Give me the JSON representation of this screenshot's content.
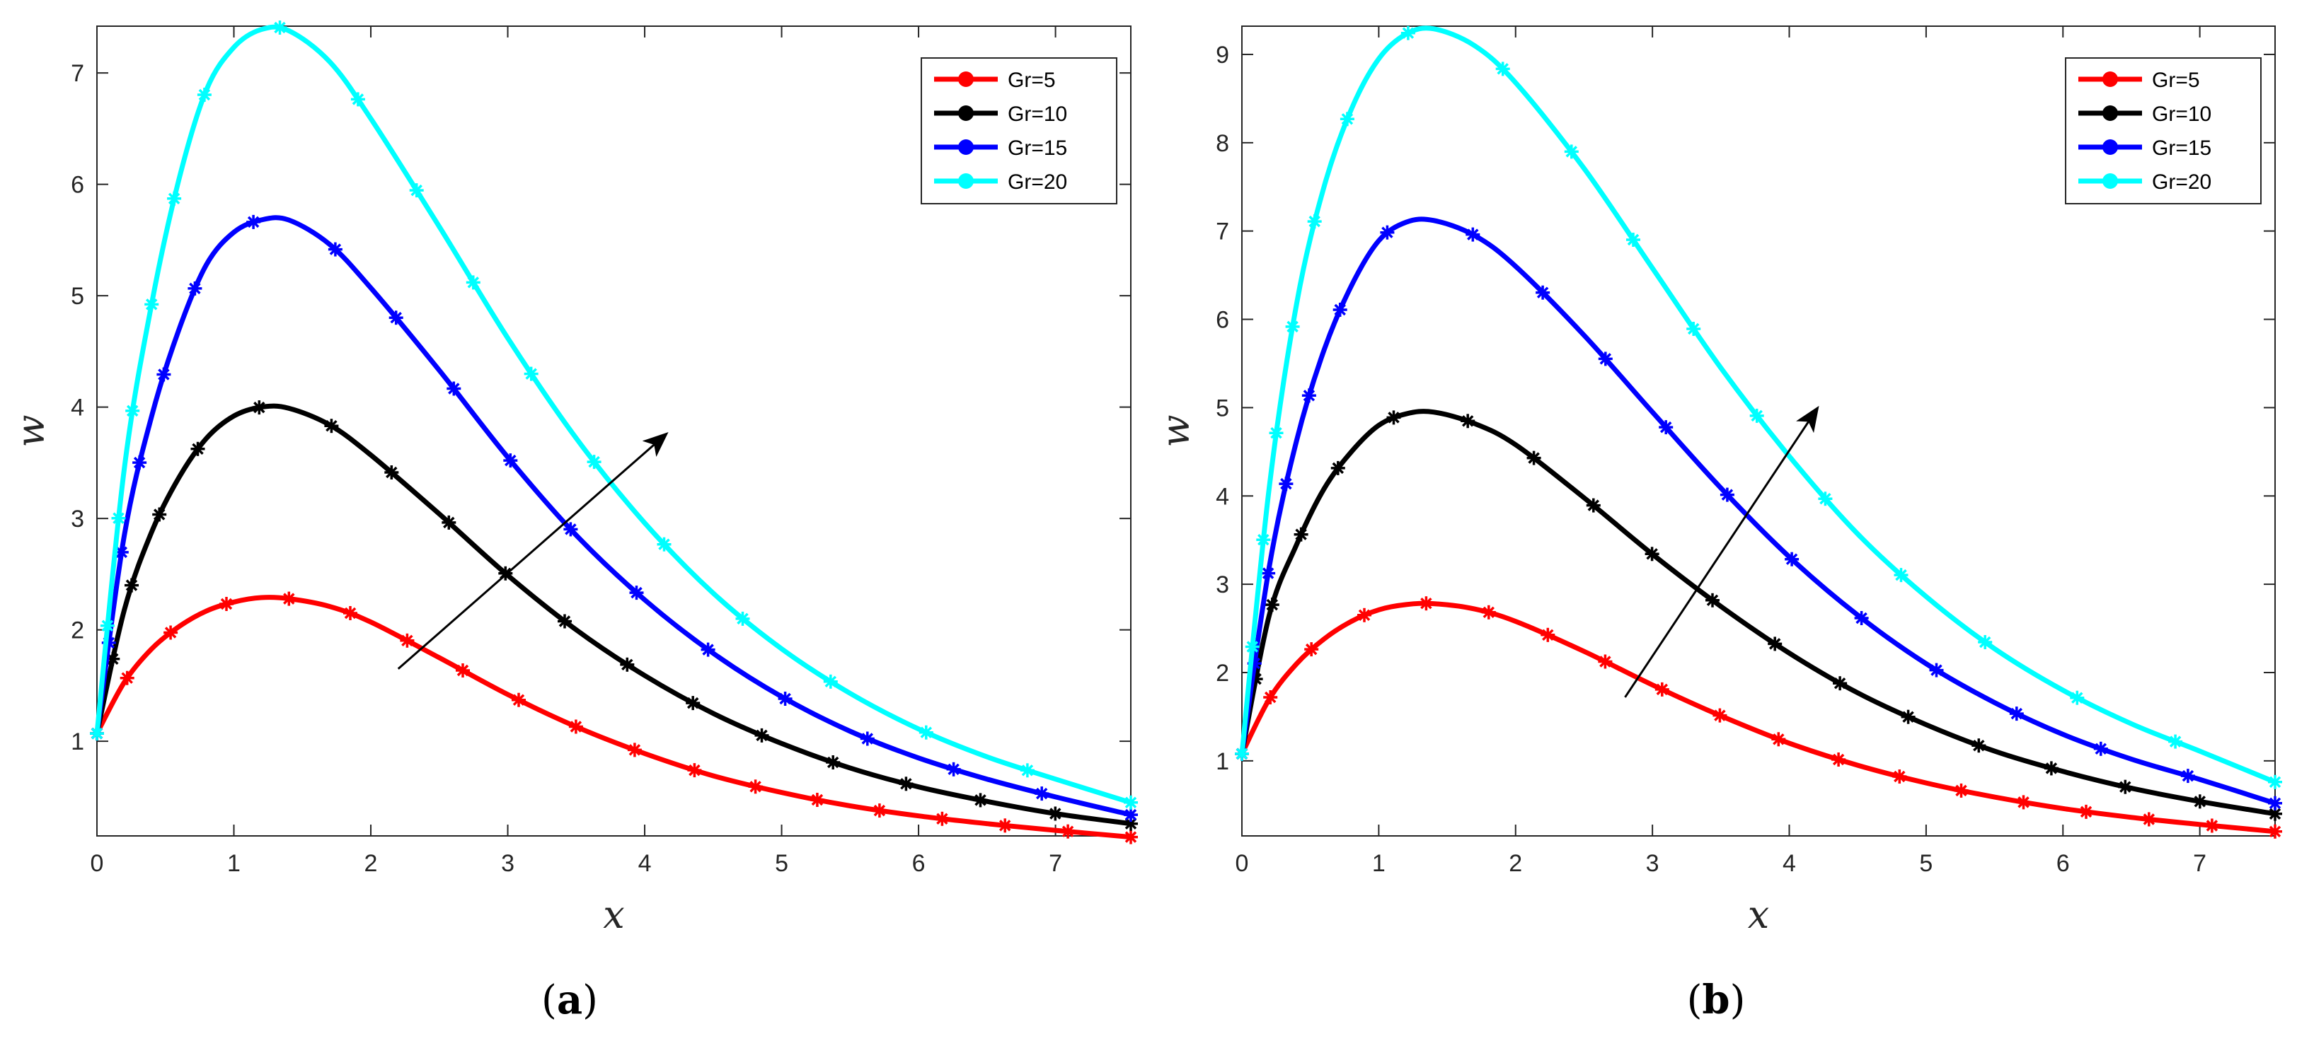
{
  "chart_data": [
    {
      "type": "line",
      "panel_label": "a",
      "xlabel": "x",
      "ylabel": "w",
      "xlim": [
        0,
        7.55
      ],
      "ylim": [
        0.15,
        7.42
      ],
      "xticks": [
        0,
        1,
        2,
        3,
        4,
        5,
        6,
        7
      ],
      "yticks": [
        1,
        2,
        3,
        4,
        5,
        6,
        7
      ],
      "legend_position": "top-right",
      "arrow": {
        "from": [
          2.2,
          1.65
        ],
        "to": [
          4.15,
          3.75
        ]
      },
      "series": [
        {
          "name": "Gr=5",
          "color": "#ff0000",
          "x": [
            0,
            0.2,
            0.4,
            0.6,
            0.8,
            1.0,
            1.2,
            1.4,
            1.7,
            2.0,
            2.5,
            3.0,
            3.5,
            4.0,
            4.5,
            5.0,
            5.5,
            6.0,
            6.5,
            7.0,
            7.55
          ],
          "y": [
            1.07,
            1.53,
            1.83,
            2.03,
            2.17,
            2.25,
            2.29,
            2.28,
            2.21,
            2.07,
            1.75,
            1.42,
            1.13,
            0.89,
            0.69,
            0.54,
            0.42,
            0.33,
            0.26,
            0.2,
            0.14
          ]
        },
        {
          "name": "Gr=10",
          "color": "#000000",
          "x": [
            0,
            0.2,
            0.4,
            0.6,
            0.8,
            1.0,
            1.2,
            1.4,
            1.7,
            2.0,
            2.5,
            3.0,
            3.5,
            4.0,
            4.5,
            5.0,
            5.5,
            6.0,
            6.5,
            7.0,
            7.55
          ],
          "y": [
            1.07,
            2.18,
            2.88,
            3.37,
            3.72,
            3.92,
            4.0,
            3.99,
            3.84,
            3.57,
            3.04,
            2.49,
            2.0,
            1.59,
            1.25,
            0.98,
            0.76,
            0.59,
            0.46,
            0.35,
            0.26
          ]
        },
        {
          "name": "Gr=15",
          "color": "#0000ff",
          "x": [
            0,
            0.2,
            0.4,
            0.6,
            0.8,
            1.0,
            1.2,
            1.4,
            1.7,
            2.0,
            2.5,
            3.0,
            3.5,
            4.0,
            4.5,
            5.0,
            5.5,
            6.0,
            6.5,
            7.0,
            7.55
          ],
          "y": [
            1.07,
            2.85,
            3.92,
            4.7,
            5.28,
            5.57,
            5.68,
            5.68,
            5.46,
            5.07,
            4.33,
            3.55,
            2.85,
            2.27,
            1.79,
            1.4,
            1.09,
            0.85,
            0.66,
            0.5,
            0.34
          ]
        },
        {
          "name": "Gr=20",
          "color": "#00ffff",
          "x": [
            0,
            0.2,
            0.4,
            0.6,
            0.8,
            1.0,
            1.2,
            1.4,
            1.7,
            2.0,
            2.5,
            3.0,
            3.5,
            4.0,
            4.5,
            5.0,
            5.5,
            6.0,
            6.5,
            7.0,
            7.55
          ],
          "y": [
            1.07,
            3.45,
            4.93,
            6.05,
            6.85,
            7.23,
            7.39,
            7.38,
            7.1,
            6.59,
            5.62,
            4.62,
            3.72,
            2.96,
            2.33,
            1.83,
            1.43,
            1.11,
            0.86,
            0.66,
            0.45
          ]
        }
      ]
    },
    {
      "type": "line",
      "panel_label": "b",
      "xlabel": "x",
      "ylabel": "w",
      "xlim": [
        0,
        7.55
      ],
      "ylim": [
        0.15,
        9.32
      ],
      "xticks": [
        0,
        1,
        2,
        3,
        4,
        5,
        6,
        7
      ],
      "yticks": [
        1,
        2,
        3,
        4,
        5,
        6,
        7,
        8,
        9
      ],
      "legend_position": "top-right",
      "arrow": {
        "from": [
          2.8,
          1.72
        ],
        "to": [
          4.2,
          4.98
        ]
      },
      "series": [
        {
          "name": "Gr=5",
          "color": "#ff0000",
          "x": [
            0,
            0.2,
            0.4,
            0.6,
            0.8,
            1.0,
            1.2,
            1.4,
            1.7,
            2.0,
            2.5,
            3.0,
            3.5,
            4.0,
            4.5,
            5.0,
            5.5,
            6.0,
            6.5,
            7.0,
            7.55
          ],
          "y": [
            1.08,
            1.7,
            2.1,
            2.38,
            2.58,
            2.71,
            2.77,
            2.78,
            2.72,
            2.58,
            2.24,
            1.86,
            1.51,
            1.2,
            0.95,
            0.75,
            0.59,
            0.46,
            0.36,
            0.28,
            0.2
          ]
        },
        {
          "name": "Gr=10",
          "color": "#000000",
          "x": [
            0,
            0.2,
            0.4,
            0.6,
            0.8,
            1.0,
            1.2,
            1.4,
            1.7,
            2.0,
            2.5,
            3.0,
            3.5,
            4.0,
            4.5,
            5.0,
            5.5,
            6.0,
            6.5,
            7.0,
            7.55
          ],
          "y": [
            1.08,
            2.65,
            3.45,
            4.08,
            4.5,
            4.8,
            4.93,
            4.95,
            4.82,
            4.58,
            3.98,
            3.34,
            2.75,
            2.22,
            1.77,
            1.41,
            1.11,
            0.88,
            0.69,
            0.54,
            0.4
          ]
        },
        {
          "name": "Gr=15",
          "color": "#0000ff",
          "x": [
            0,
            0.2,
            0.4,
            0.6,
            0.8,
            1.0,
            1.2,
            1.4,
            1.7,
            2.0,
            2.5,
            3.0,
            3.5,
            4.0,
            4.5,
            5.0,
            5.5,
            6.0,
            6.5,
            7.0,
            7.55
          ],
          "y": [
            1.08,
            3.2,
            4.63,
            5.65,
            6.38,
            6.89,
            7.1,
            7.12,
            6.95,
            6.6,
            5.82,
            4.95,
            4.09,
            3.31,
            2.65,
            2.1,
            1.66,
            1.3,
            1.02,
            0.79,
            0.52
          ]
        },
        {
          "name": "Gr=20",
          "color": "#00ffff",
          "x": [
            0,
            0.2,
            0.4,
            0.6,
            0.8,
            1.0,
            1.2,
            1.4,
            1.7,
            2.0,
            2.5,
            3.0,
            3.5,
            4.0,
            4.5,
            5.0,
            5.5,
            6.0,
            6.5,
            7.0,
            7.55
          ],
          "y": [
            1.08,
            4.1,
            6.18,
            7.5,
            8.38,
            8.95,
            9.23,
            9.29,
            9.1,
            8.68,
            7.71,
            6.58,
            5.45,
            4.45,
            3.57,
            2.86,
            2.27,
            1.8,
            1.42,
            1.11,
            0.76
          ]
        }
      ]
    }
  ]
}
